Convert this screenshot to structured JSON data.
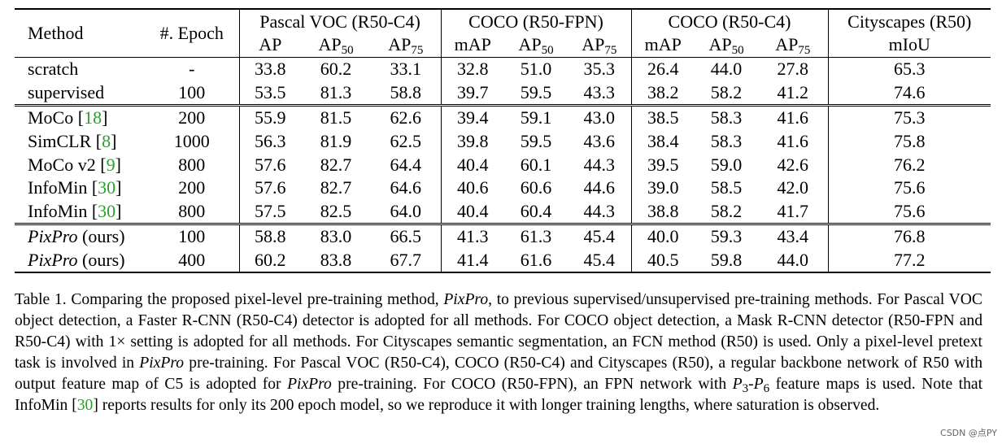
{
  "table": {
    "header": {
      "method": "Method",
      "epoch": "#. Epoch",
      "groups": [
        {
          "title": "Pascal VOC (R50-C4)",
          "cols": [
            [
              "AP",
              ""
            ],
            [
              "AP",
              "50"
            ],
            [
              "AP",
              "75"
            ]
          ]
        },
        {
          "title": "COCO (R50-FPN)",
          "cols": [
            [
              "mAP",
              ""
            ],
            [
              "AP",
              "50"
            ],
            [
              "AP",
              "75"
            ]
          ]
        },
        {
          "title": "COCO (R50-C4)",
          "cols": [
            [
              "mAP",
              ""
            ],
            [
              "AP",
              "50"
            ],
            [
              "AP",
              "75"
            ]
          ]
        },
        {
          "title": "Cityscapes (R50)",
          "cols": [
            [
              "mIoU",
              ""
            ]
          ]
        }
      ]
    },
    "rows": [
      {
        "method": "scratch",
        "cite": "",
        "suffix": "",
        "italic": false,
        "epoch": "-",
        "values": [
          "33.8",
          "60.2",
          "33.1",
          "32.8",
          "51.0",
          "35.3",
          "26.4",
          "44.0",
          "27.8",
          "65.3"
        ],
        "bold": false
      },
      {
        "method": "supervised",
        "cite": "",
        "suffix": "",
        "italic": false,
        "epoch": "100",
        "values": [
          "53.5",
          "81.3",
          "58.8",
          "39.7",
          "59.5",
          "43.3",
          "38.2",
          "58.2",
          "41.2",
          "74.6"
        ],
        "bold": false
      },
      {
        "method": "MoCo",
        "cite": "18",
        "suffix": "",
        "italic": false,
        "epoch": "200",
        "values": [
          "55.9",
          "81.5",
          "62.6",
          "39.4",
          "59.1",
          "43.0",
          "38.5",
          "58.3",
          "41.6",
          "75.3"
        ],
        "bold": false
      },
      {
        "method": "SimCLR",
        "cite": "8",
        "suffix": "",
        "italic": false,
        "epoch": "1000",
        "values": [
          "56.3",
          "81.9",
          "62.5",
          "39.8",
          "59.5",
          "43.6",
          "38.4",
          "58.3",
          "41.6",
          "75.8"
        ],
        "bold": false
      },
      {
        "method": "MoCo v2",
        "cite": "9",
        "suffix": "",
        "italic": false,
        "epoch": "800",
        "values": [
          "57.6",
          "82.7",
          "64.4",
          "40.4",
          "60.1",
          "44.3",
          "39.5",
          "59.0",
          "42.6",
          "76.2"
        ],
        "bold": false
      },
      {
        "method": "InfoMin",
        "cite": "30",
        "suffix": "",
        "italic": false,
        "epoch": "200",
        "values": [
          "57.6",
          "82.7",
          "64.6",
          "40.6",
          "60.6",
          "44.6",
          "39.0",
          "58.5",
          "42.0",
          "75.6"
        ],
        "bold": false
      },
      {
        "method": "InfoMin",
        "cite": "30",
        "suffix": "",
        "italic": false,
        "epoch": "800",
        "values": [
          "57.5",
          "82.5",
          "64.0",
          "40.4",
          "60.4",
          "44.3",
          "38.8",
          "58.2",
          "41.7",
          "75.6"
        ],
        "bold": false
      },
      {
        "method": "PixPro",
        "cite": "",
        "suffix": " (ours)",
        "italic": true,
        "epoch": "100",
        "values": [
          "58.8",
          "83.0",
          "66.5",
          "41.3",
          "61.3",
          "45.4",
          "40.0",
          "59.3",
          "43.4",
          "76.8"
        ],
        "bold": false
      },
      {
        "method": "PixPro",
        "cite": "",
        "suffix": " (ours)",
        "italic": true,
        "epoch": "400",
        "values": [
          "60.2",
          "83.8",
          "67.7",
          "41.4",
          "61.6",
          "45.4",
          "40.5",
          "59.8",
          "44.0",
          "77.2"
        ],
        "bold": true
      }
    ]
  },
  "caption": {
    "label": "Table 1.",
    "parts": [
      {
        "t": " Comparing the proposed pixel-level pre-training method, ",
        "s": "n"
      },
      {
        "t": "PixPro",
        "s": "i"
      },
      {
        "t": ", to previous supervised/unsupervised pre-training methods. For Pascal VOC object detection, a Faster R-CNN (R50-C4) detector is adopted for all methods. For COCO object detection, a Mask R-CNN detector (R50-FPN and R50-C4) with 1× setting is adopted for all methods. For Cityscapes semantic segmentation, an FCN method (R50) is used. Only a pixel-level pretext task is involved in ",
        "s": "n"
      },
      {
        "t": "PixPro",
        "s": "i"
      },
      {
        "t": " pre-training. For Pascal VOC (R50-C4), COCO (R50-C4) and Cityscapes (R50), a regular backbone network of R50 with output feature map of C5 is adopted for ",
        "s": "n"
      },
      {
        "t": "PixPro",
        "s": "i"
      },
      {
        "t": " pre-training. For COCO (R50-FPN), an FPN network with ",
        "s": "n"
      },
      {
        "t": "P",
        "s": "i"
      },
      {
        "t": "3",
        "s": "sub"
      },
      {
        "t": "-",
        "s": "n"
      },
      {
        "t": "P",
        "s": "i"
      },
      {
        "t": "6",
        "s": "sub"
      },
      {
        "t": " feature maps is used. Note that InfoMin [",
        "s": "n"
      },
      {
        "t": "30",
        "s": "c"
      },
      {
        "t": "] reports results for only its 200 epoch model, so we reproduce it with longer training lengths, where saturation is observed.",
        "s": "n"
      }
    ]
  },
  "watermark": "CSDN @点PY"
}
